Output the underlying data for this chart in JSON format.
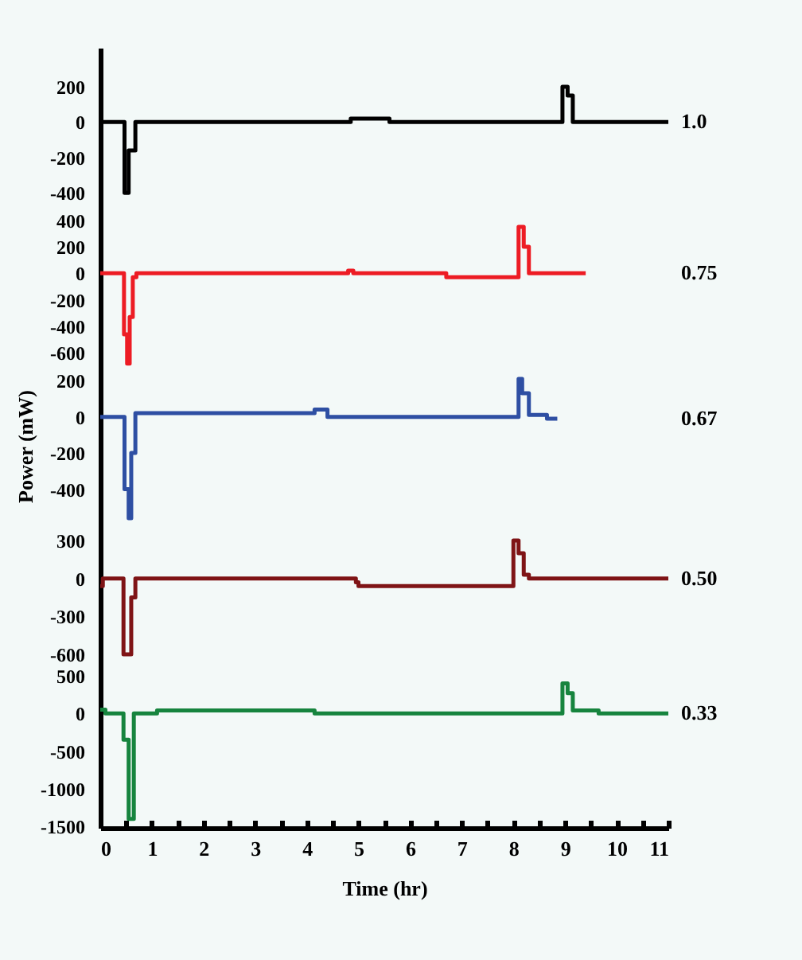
{
  "chart_data": [
    {
      "type": "step",
      "xlim": [
        0,
        11
      ],
      "ylim": [
        -480,
        420
      ],
      "yticks": [
        200,
        0,
        -200,
        -400
      ],
      "tick_labels": "y",
      "series": [
        {
          "name": "1.0",
          "color": "#000000",
          "x": [
            0,
            0.47,
            0.55,
            0.68,
            4.85,
            5.6,
            8.95,
            9.05,
            9.15,
            11
          ],
          "values": [
            0,
            -400,
            -160,
            0,
            20,
            0,
            200,
            150,
            0,
            0
          ]
        }
      ]
    },
    {
      "type": "step",
      "xlim": [
        0,
        11
      ],
      "ylim": [
        -700,
        500
      ],
      "yticks": [
        400,
        200,
        0,
        -200,
        -400,
        -600
      ],
      "tick_labels": "y",
      "series": [
        {
          "name": "0.75",
          "color": "#ed1c24",
          "x": [
            0,
            0.46,
            0.52,
            0.57,
            0.63,
            0.7,
            4.8,
            4.9,
            6.7,
            8.1,
            8.2,
            8.3,
            9.4
          ],
          "values": [
            0,
            -460,
            -680,
            -330,
            -30,
            0,
            20,
            0,
            -30,
            350,
            200,
            0,
            0
          ]
        }
      ]
    },
    {
      "type": "step",
      "xlim": [
        0,
        11
      ],
      "ylim": [
        -600,
        280
      ],
      "yticks": [
        200,
        0,
        -200,
        -400
      ],
      "tick_labels": "y",
      "ylabel": "Power (mW)",
      "series": [
        {
          "name": "0.67",
          "color": "#2e4fa3",
          "x": [
            0,
            0.47,
            0.55,
            0.6,
            0.68,
            4.15,
            4.4,
            8.1,
            8.17,
            8.3,
            8.65,
            8.85
          ],
          "values": [
            0,
            -400,
            -560,
            -200,
            20,
            40,
            0,
            210,
            130,
            10,
            -10,
            -10
          ]
        }
      ]
    },
    {
      "type": "step",
      "xlim": [
        0,
        11
      ],
      "ylim": [
        -650,
        420
      ],
      "yticks": [
        300,
        0,
        -300,
        -600
      ],
      "tick_labels": "y",
      "series": [
        {
          "name": "0.50",
          "color": "#7f1416",
          "x": [
            0,
            0.05,
            0.45,
            0.6,
            0.68,
            4.95,
            5.0,
            8.0,
            8.1,
            8.2,
            8.3,
            11
          ],
          "values": [
            -60,
            0,
            -600,
            -150,
            0,
            -30,
            -60,
            300,
            200,
            30,
            0,
            0
          ]
        }
      ]
    },
    {
      "type": "step",
      "xlim": [
        0,
        11
      ],
      "ylim": [
        -1520,
        700
      ],
      "yticks": [
        500,
        0,
        -500,
        -1000,
        -1500
      ],
      "xlabel": "Time (hr)",
      "xticks": [
        0,
        {
          "value": 0.5,
          "label": null
        },
        1,
        {
          "value": 1.5,
          "label": null
        },
        2,
        {
          "value": 2.5,
          "label": null
        },
        3,
        {
          "value": 3.5,
          "label": null
        },
        4,
        {
          "value": 4.5,
          "label": null
        },
        5,
        {
          "value": 5.5,
          "label": null
        },
        6,
        {
          "value": 6.5,
          "label": null
        },
        7,
        {
          "value": 7.5,
          "label": null
        },
        8,
        {
          "value": 8.5,
          "label": null
        },
        9,
        {
          "value": 9.5,
          "label": null
        },
        10,
        {
          "value": 10.5,
          "label": null
        },
        11
      ],
      "series": [
        {
          "name": "0.33",
          "color": "#16843e",
          "x": [
            0,
            0.1,
            0.45,
            0.55,
            0.65,
            1.1,
            4.15,
            8.95,
            9.05,
            9.15,
            9.65,
            11
          ],
          "values": [
            50,
            0,
            -350,
            -1400,
            0,
            40,
            0,
            400,
            270,
            40,
            0,
            0
          ]
        }
      ]
    }
  ]
}
